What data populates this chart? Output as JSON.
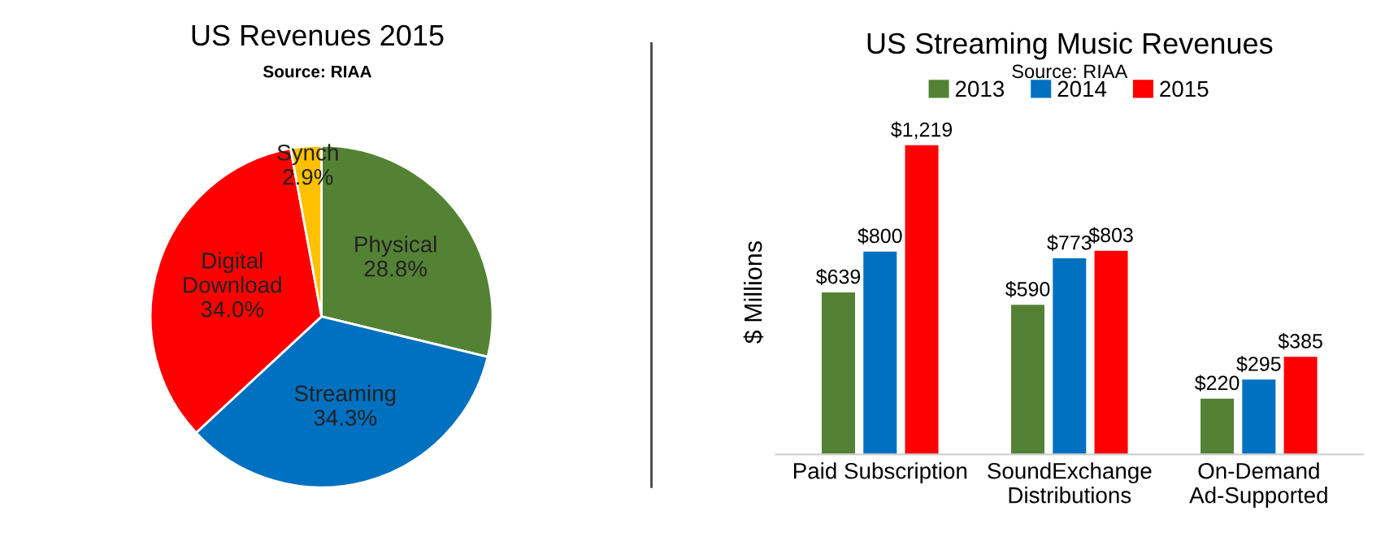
{
  "chart_data": [
    {
      "type": "pie",
      "title": "US Revenues 2015",
      "subtitle": "Source: RIAA",
      "categories": [
        "Physical",
        "Streaming",
        "Digital Download",
        "Synch"
      ],
      "values": [
        28.8,
        34.3,
        34.0,
        2.9
      ],
      "value_labels": [
        "28.8%",
        "34.3%",
        "34.0%",
        "2.9%"
      ],
      "colors": [
        "#548235",
        "#0070c0",
        "#ff0000",
        "#ffc000"
      ]
    },
    {
      "type": "bar",
      "title": "US Streaming Music Revenues",
      "subtitle": "Source: RIAA",
      "ylabel": "$ Millions",
      "categories": [
        "Paid Subscription",
        "SoundExchange Distributions",
        "On-Demand Ad-Supported"
      ],
      "relative": false,
      "legend": "top",
      "grid": false,
      "series": [
        {
          "name": "2013",
          "color": "#548235",
          "values": [
            639,
            590,
            220
          ],
          "value_labels": [
            "$639",
            "$590",
            "$220"
          ]
        },
        {
          "name": "2014",
          "color": "#0070c0",
          "values": [
            800,
            773,
            295
          ],
          "value_labels": [
            "$800",
            "$773",
            "$295"
          ]
        },
        {
          "name": "2015",
          "color": "#ff0000",
          "values": [
            1219,
            803,
            385
          ],
          "value_labels": [
            "$1,219",
            "$803",
            "$385"
          ]
        }
      ]
    }
  ]
}
